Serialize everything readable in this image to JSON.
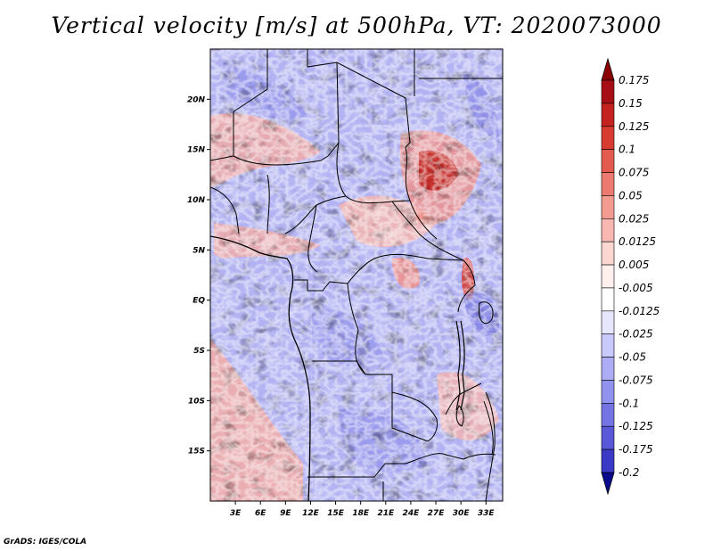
{
  "title": "Vertical velocity [m/s] at 500hPa, VT: 2020073000",
  "credit": "GrADS: IGES/COLA",
  "map": {
    "lon_range": [
      0,
      35
    ],
    "lat_range": [
      -20,
      25
    ],
    "lat_ticks": [
      {
        "label": "20N",
        "value": 20
      },
      {
        "label": "15N",
        "value": 15
      },
      {
        "label": "10N",
        "value": 10
      },
      {
        "label": "5N",
        "value": 5
      },
      {
        "label": "EQ",
        "value": 0
      },
      {
        "label": "5S",
        "value": -5
      },
      {
        "label": "10S",
        "value": -10
      },
      {
        "label": "15S",
        "value": -15
      }
    ],
    "lon_ticks": [
      {
        "label": "3E",
        "value": 3
      },
      {
        "label": "6E",
        "value": 6
      },
      {
        "label": "9E",
        "value": 9
      },
      {
        "label": "12E",
        "value": 12
      },
      {
        "label": "15E",
        "value": 15
      },
      {
        "label": "18E",
        "value": 18
      },
      {
        "label": "21E",
        "value": 21
      },
      {
        "label": "24E",
        "value": 24
      },
      {
        "label": "27E",
        "value": 27
      },
      {
        "label": "30E",
        "value": 30
      },
      {
        "label": "33E",
        "value": 33
      }
    ]
  },
  "colorbar": {
    "levels": [
      {
        "label": "0.175",
        "color": "#a50f15"
      },
      {
        "label": "0.15",
        "color": "#c4221f"
      },
      {
        "label": "0.125",
        "color": "#d83b30"
      },
      {
        "label": "0.1",
        "color": "#e35a4e"
      },
      {
        "label": "0.075",
        "color": "#ec7a70"
      },
      {
        "label": "0.05",
        "color": "#f39a91"
      },
      {
        "label": "0.025",
        "color": "#f8b8b1"
      },
      {
        "label": "0.0125",
        "color": "#fcd6d1"
      },
      {
        "label": "0.005",
        "color": "#fff0ee"
      },
      {
        "label": "-0.005",
        "color": "#ffffff"
      },
      {
        "label": "-0.0125",
        "color": "#e6e6ff"
      },
      {
        "label": "-0.025",
        "color": "#c9c9fb"
      },
      {
        "label": "-0.05",
        "color": "#adadf5"
      },
      {
        "label": "-0.075",
        "color": "#9191ee"
      },
      {
        "label": "-0.1",
        "color": "#7474e4"
      },
      {
        "label": "-0.125",
        "color": "#5858d8"
      },
      {
        "label": "-0.175",
        "color": "#3a3ac6"
      },
      {
        "label": "-0.2",
        "color": "#1c1cab"
      }
    ],
    "top_color": "#8b0000",
    "bottom_color": "#0a0a8c"
  }
}
